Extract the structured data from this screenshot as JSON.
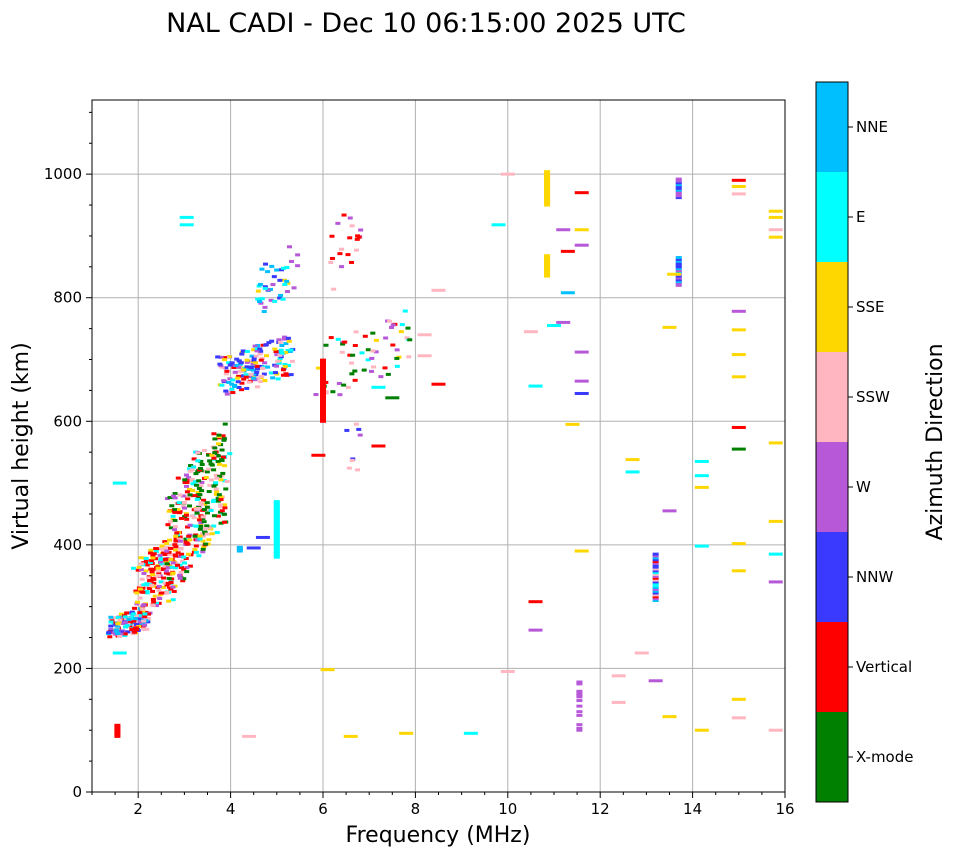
{
  "chart_data": {
    "type": "scatter",
    "title": "NAL CADI - Dec 10 06:15:00 2025 UTC",
    "xlabel": "Frequency (MHz)",
    "ylabel": "Virtual height (km)",
    "xlim": [
      1,
      16
    ],
    "ylim": [
      0,
      1120
    ],
    "xticks": [
      2,
      4,
      6,
      8,
      10,
      12,
      14,
      16
    ],
    "yticks": [
      0,
      200,
      400,
      600,
      800,
      1000
    ],
    "grid": true,
    "colorbar": {
      "title": "Azimuth Direction",
      "categories": [
        {
          "name": "X-mode",
          "color": "#008000"
        },
        {
          "name": "Vertical",
          "color": "#ff0000"
        },
        {
          "name": "NNW",
          "color": "#3a3aff"
        },
        {
          "name": "W",
          "color": "#b658d8"
        },
        {
          "name": "SSW",
          "color": "#ffb6c1"
        },
        {
          "name": "SSE",
          "color": "#ffd700"
        },
        {
          "name": "E",
          "color": "#00ffff"
        },
        {
          "name": "NNE",
          "color": "#00bfff"
        }
      ]
    },
    "clusters": [
      {
        "f": [
          1.4,
          2.2
        ],
        "h": [
          245,
          300
        ],
        "n": 140,
        "colors": [
          1,
          1,
          6,
          7,
          5,
          4,
          3,
          2
        ]
      },
      {
        "f": [
          2.0,
          2.8
        ],
        "h": [
          280,
          420
        ],
        "n": 170,
        "colors": [
          1,
          1,
          1,
          4,
          6,
          5,
          3
        ]
      },
      {
        "f": [
          2.6,
          3.4
        ],
        "h": [
          300,
          560
        ],
        "n": 160,
        "colors": [
          1,
          1,
          0,
          6,
          5,
          4,
          3
        ]
      },
      {
        "f": [
          3.2,
          3.9
        ],
        "h": [
          370,
          600
        ],
        "n": 150,
        "colors": [
          0,
          0,
          0,
          5,
          6,
          1,
          4
        ]
      },
      {
        "f": [
          3.8,
          5.3
        ],
        "h": [
          640,
          740
        ],
        "n": 170,
        "colors": [
          3,
          2,
          2,
          6,
          7,
          4,
          1,
          5
        ]
      },
      {
        "f": [
          4.6,
          5.4
        ],
        "h": [
          760,
          900
        ],
        "n": 40,
        "colors": [
          2,
          3,
          6,
          5,
          7
        ]
      },
      {
        "f": [
          5.9,
          7.9
        ],
        "h": [
          630,
          780
        ],
        "n": 60,
        "colors": [
          4,
          3,
          5,
          6,
          1,
          0
        ]
      },
      {
        "f": [
          6.2,
          6.8
        ],
        "h": [
          780,
          970
        ],
        "n": 20,
        "colors": [
          3,
          4,
          1
        ]
      },
      {
        "f": [
          6.5,
          6.8
        ],
        "h": [
          500,
          620
        ],
        "n": 8,
        "colors": [
          3,
          4,
          2
        ]
      }
    ],
    "vertical_columns": [
      {
        "f": 1.55,
        "h": [
          90,
          110
        ],
        "color": 1
      },
      {
        "f": 4.2,
        "h": [
          390,
          398
        ],
        "color": 7
      },
      {
        "f": 6.0,
        "h": [
          600,
          700
        ],
        "color": 1
      },
      {
        "f": 5.0,
        "h": [
          380,
          470
        ],
        "color": 6
      },
      {
        "f": 10.85,
        "h": [
          950,
          1005
        ],
        "color": 5
      },
      {
        "f": 10.85,
        "h": [
          835,
          870
        ],
        "color": 5
      },
      {
        "f": 13.2,
        "h": [
          310,
          385
        ],
        "color": 2
      },
      {
        "f": 13.7,
        "h": [
          820,
          865
        ],
        "color": 2
      },
      {
        "f": 13.7,
        "h": [
          962,
          992
        ],
        "color": 3
      },
      {
        "f": 11.55,
        "h": [
          88,
          185
        ],
        "color": 3
      }
    ],
    "isolated_echoes": [
      {
        "f": 15.0,
        "h": 990,
        "color": 1
      },
      {
        "f": 15.0,
        "h": 980,
        "color": 5
      },
      {
        "f": 15.0,
        "h": 968,
        "color": 4
      },
      {
        "f": 15.0,
        "h": 778,
        "color": 3
      },
      {
        "f": 15.0,
        "h": 748,
        "color": 5
      },
      {
        "f": 15.0,
        "h": 708,
        "color": 5
      },
      {
        "f": 15.0,
        "h": 672,
        "color": 5
      },
      {
        "f": 15.0,
        "h": 590,
        "color": 1
      },
      {
        "f": 15.0,
        "h": 555,
        "color": 0
      },
      {
        "f": 15.0,
        "h": 402,
        "color": 5
      },
      {
        "f": 15.0,
        "h": 358,
        "color": 5
      },
      {
        "f": 15.0,
        "h": 150,
        "color": 5
      },
      {
        "f": 15.0,
        "h": 120,
        "color": 4
      },
      {
        "f": 15.8,
        "h": 940,
        "color": 5
      },
      {
        "f": 15.8,
        "h": 930,
        "color": 5
      },
      {
        "f": 15.8,
        "h": 910,
        "color": 4
      },
      {
        "f": 15.8,
        "h": 898,
        "color": 5
      },
      {
        "f": 15.8,
        "h": 565,
        "color": 5
      },
      {
        "f": 15.8,
        "h": 438,
        "color": 5
      },
      {
        "f": 15.8,
        "h": 385,
        "color": 6
      },
      {
        "f": 15.8,
        "h": 340,
        "color": 3
      },
      {
        "f": 15.8,
        "h": 100,
        "color": 4
      },
      {
        "f": 14.2,
        "h": 535,
        "color": 6
      },
      {
        "f": 14.2,
        "h": 512,
        "color": 6
      },
      {
        "f": 14.2,
        "h": 493,
        "color": 5
      },
      {
        "f": 14.2,
        "h": 398,
        "color": 6
      },
      {
        "f": 14.2,
        "h": 100,
        "color": 5
      },
      {
        "f": 13.6,
        "h": 838,
        "color": 5
      },
      {
        "f": 13.5,
        "h": 752,
        "color": 5
      },
      {
        "f": 13.5,
        "h": 455,
        "color": 3
      },
      {
        "f": 13.5,
        "h": 122,
        "color": 5
      },
      {
        "f": 13.2,
        "h": 180,
        "color": 3
      },
      {
        "f": 12.7,
        "h": 538,
        "color": 5
      },
      {
        "f": 12.7,
        "h": 518,
        "color": 6
      },
      {
        "f": 12.4,
        "h": 188,
        "color": 4
      },
      {
        "f": 12.4,
        "h": 145,
        "color": 4
      },
      {
        "f": 12.9,
        "h": 225,
        "color": 4
      },
      {
        "f": 11.6,
        "h": 970,
        "color": 1
      },
      {
        "f": 11.6,
        "h": 910,
        "color": 5
      },
      {
        "f": 11.6,
        "h": 885,
        "color": 3
      },
      {
        "f": 11.6,
        "h": 712,
        "color": 3
      },
      {
        "f": 11.6,
        "h": 665,
        "color": 3
      },
      {
        "f": 11.6,
        "h": 645,
        "color": 2
      },
      {
        "f": 11.6,
        "h": 390,
        "color": 5
      },
      {
        "f": 11.4,
        "h": 595,
        "color": 5
      },
      {
        "f": 11.3,
        "h": 875,
        "color": 1
      },
      {
        "f": 11.3,
        "h": 808,
        "color": 7
      },
      {
        "f": 11.2,
        "h": 910,
        "color": 3
      },
      {
        "f": 11.2,
        "h": 760,
        "color": 3
      },
      {
        "f": 11.0,
        "h": 755,
        "color": 6
      },
      {
        "f": 10.6,
        "h": 308,
        "color": 1
      },
      {
        "f": 10.6,
        "h": 262,
        "color": 3
      },
      {
        "f": 10.6,
        "h": 657,
        "color": 6
      },
      {
        "f": 10.5,
        "h": 745,
        "color": 4
      },
      {
        "f": 10.0,
        "h": 1000,
        "color": 4
      },
      {
        "f": 9.8,
        "h": 918,
        "color": 6
      },
      {
        "f": 10.0,
        "h": 195,
        "color": 4
      },
      {
        "f": 9.2,
        "h": 95,
        "color": 6
      },
      {
        "f": 8.5,
        "h": 812,
        "color": 4
      },
      {
        "f": 8.5,
        "h": 660,
        "color": 1
      },
      {
        "f": 8.2,
        "h": 740,
        "color": 4
      },
      {
        "f": 8.2,
        "h": 706,
        "color": 4
      },
      {
        "f": 7.8,
        "h": 95,
        "color": 5
      },
      {
        "f": 6.6,
        "h": 90,
        "color": 5
      },
      {
        "f": 6.1,
        "h": 198,
        "color": 5
      },
      {
        "f": 5.9,
        "h": 545,
        "color": 1
      },
      {
        "f": 4.4,
        "h": 90,
        "color": 4
      },
      {
        "f": 3.05,
        "h": 930,
        "color": 6
      },
      {
        "f": 3.05,
        "h": 918,
        "color": 6
      },
      {
        "f": 1.6,
        "h": 500,
        "color": 6
      },
      {
        "f": 1.6,
        "h": 225,
        "color": 6
      },
      {
        "f": 4.7,
        "h": 412,
        "color": 2
      },
      {
        "f": 4.5,
        "h": 395,
        "color": 2
      },
      {
        "f": 7.2,
        "h": 560,
        "color": 1
      },
      {
        "f": 7.5,
        "h": 638,
        "color": 0
      },
      {
        "f": 7.2,
        "h": 655,
        "color": 6
      }
    ]
  }
}
